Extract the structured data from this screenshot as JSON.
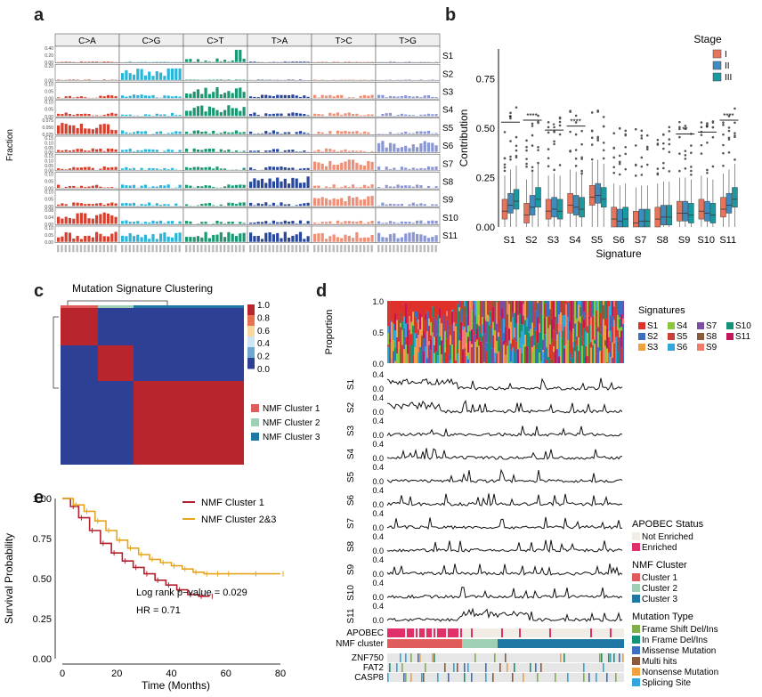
{
  "panel_labels": [
    "a",
    "b",
    "c",
    "d",
    "e"
  ],
  "panel_a": {
    "ylabel": "Fraction",
    "columns": [
      "C>A",
      "C>G",
      "C>T",
      "T>A",
      "T>C",
      "T>G"
    ],
    "rows": [
      "S1",
      "S2",
      "S3",
      "S4",
      "S5",
      "S6",
      "S7",
      "S8",
      "S9",
      "S10",
      "S11"
    ],
    "row_ticks": [
      [
        "0.40",
        "0.20",
        "0.00"
      ],
      [
        "0.20",
        "0.00"
      ],
      [
        "0.10",
        "0.05",
        "0.00"
      ],
      [
        "0.10",
        "0.05",
        "0.00"
      ],
      [
        "0.075",
        "0.050",
        "0.025"
      ],
      [
        "0.15",
        "0.10",
        "0.05",
        "0.00"
      ],
      [
        "0.15",
        "0.10",
        "0.05",
        "0.00"
      ],
      [
        "0.10",
        "0.05",
        "0.00"
      ],
      [
        "0.10",
        "0.05",
        "0.00"
      ],
      [
        "0.08",
        "0.04",
        "0.00"
      ],
      [
        "0.10",
        "0.05",
        "0.00"
      ]
    ],
    "colors": [
      "#d7402e",
      "#2bb6d9",
      "#1a9873",
      "#28479b",
      "#ee8f78",
      "#8a97d3"
    ]
  },
  "panel_b": {
    "ylabel": "Contribution",
    "xlabel": "Signature",
    "legend_title": "Stage",
    "legend_items": [
      "I",
      "II",
      "III"
    ],
    "stage_colors": [
      "#e6735a",
      "#3f8bbd",
      "#1a9aa0"
    ],
    "categories": [
      "S1",
      "S2",
      "S3",
      "S4",
      "S5",
      "S6",
      "S7",
      "S8",
      "S9",
      "S10",
      "S11"
    ],
    "y_ticks": [
      "0.00",
      "0.25",
      "0.50",
      "0.75"
    ],
    "significance": [
      "*",
      "****",
      "*",
      "****",
      "",
      "",
      "",
      "",
      "**",
      "*",
      "****"
    ],
    "chart_data": {
      "type": "box",
      "ylim": [
        0,
        0.9
      ],
      "medians_stage_I_II_III": [
        [
          0.08,
          0.11,
          0.13
        ],
        [
          0.06,
          0.1,
          0.14
        ],
        [
          0.08,
          0.09,
          0.08
        ],
        [
          0.11,
          0.1,
          0.09
        ],
        [
          0.15,
          0.16,
          0.14
        ],
        [
          0.04,
          0.03,
          0.04
        ],
        [
          0.02,
          0.03,
          0.03
        ],
        [
          0.04,
          0.05,
          0.05
        ],
        [
          0.07,
          0.07,
          0.06
        ],
        [
          0.08,
          0.07,
          0.06
        ],
        [
          0.09,
          0.11,
          0.14
        ]
      ]
    }
  },
  "panel_c": {
    "title": "Mutation Signature Clustering",
    "colorbar_ticks": [
      "1.0",
      "0.8",
      "0.6",
      "0.4",
      "0.2",
      "0.0"
    ],
    "legend": [
      {
        "label": "NMF Cluster 1",
        "color": "#e05c5c"
      },
      {
        "label": "NMF Cluster 2",
        "color": "#9fcfb5"
      },
      {
        "label": "NMF Cluster 3",
        "color": "#1f78a4"
      }
    ]
  },
  "panel_d": {
    "proportion_label": "Proportion",
    "proportion_ticks": [
      "1.0",
      "0.5",
      "0.0"
    ],
    "signatures_title": "Signatures",
    "signature_legend": [
      {
        "label": "S1",
        "color": "#e0302a"
      },
      {
        "label": "S4",
        "color": "#8cc63f"
      },
      {
        "label": "S7",
        "color": "#7b4ea1"
      },
      {
        "label": "S10",
        "color": "#14937a"
      },
      {
        "label": "S2",
        "color": "#3c6fc1"
      },
      {
        "label": "S5",
        "color": "#c94038"
      },
      {
        "label": "S8",
        "color": "#8a5a3c"
      },
      {
        "label": "S11",
        "color": "#c2185b"
      },
      {
        "label": "S3",
        "color": "#f2a03d"
      },
      {
        "label": "S6",
        "color": "#32a6dc"
      },
      {
        "label": "S9",
        "color": "#f07c6c"
      }
    ],
    "track_labels": [
      "S1",
      "S2",
      "S3",
      "S4",
      "S5",
      "S6",
      "S7",
      "S8",
      "S9",
      "S10",
      "S11"
    ],
    "track_ticks": [
      "0.4",
      "0.0"
    ],
    "annotation_tracks": [
      "APOBEC",
      "NMF cluster"
    ],
    "genes": [
      "ZNF750",
      "FAT2",
      "CASP8"
    ],
    "apobec_title": "APOBEC Status",
    "apobec_legend": [
      {
        "label": "Not Enriched",
        "color": "#f2ede4"
      },
      {
        "label": "Enriched",
        "color": "#e0306a"
      }
    ],
    "nmf_title": "NMF Cluster",
    "nmf_legend": [
      {
        "label": "Cluster 1",
        "color": "#e05c5c"
      },
      {
        "label": "Cluster 2",
        "color": "#9fcfb5"
      },
      {
        "label": "Cluster 3",
        "color": "#1f78a4"
      }
    ],
    "mutation_title": "Mutation Type",
    "mutation_legend": [
      {
        "label": "Frame Shift Del/Ins",
        "color": "#7fb04a"
      },
      {
        "label": "In Frame Del/Ins",
        "color": "#14937a"
      },
      {
        "label": "Missense Mutation",
        "color": "#3c6fc1"
      },
      {
        "label": "Multi hits",
        "color": "#8a5a3c"
      },
      {
        "label": "Nonsense Mutation",
        "color": "#f2a03d"
      },
      {
        "label": "Splicing Site",
        "color": "#32a6dc"
      }
    ]
  },
  "panel_e": {
    "ylabel": "Survival Probability",
    "xlabel": "Time (Months)",
    "x_ticks": [
      "0",
      "20",
      "40",
      "60",
      "80"
    ],
    "y_ticks": [
      "1.00",
      "0.75",
      "0.50",
      "0.25",
      "0.00"
    ],
    "legend": [
      {
        "label": "NMF Cluster 1",
        "color": "#b3202e"
      },
      {
        "label": "NMF Cluster 2&3",
        "color": "#e6a51c"
      }
    ],
    "annotation_pvalue": "Log rank p−value = 0.029",
    "annotation_hr": "HR = 0.71",
    "chart_data": {
      "type": "line",
      "xlim": [
        0,
        80
      ],
      "ylim": [
        0,
        1
      ],
      "series": [
        {
          "name": "NMF Cluster 1",
          "x": [
            0,
            3,
            6,
            10,
            14,
            18,
            22,
            26,
            30,
            34,
            38,
            42,
            46,
            50,
            54
          ],
          "y": [
            1.0,
            0.95,
            0.88,
            0.8,
            0.72,
            0.66,
            0.61,
            0.57,
            0.53,
            0.49,
            0.46,
            0.43,
            0.4,
            0.39,
            0.39
          ]
        },
        {
          "name": "NMF Cluster 2&3",
          "x": [
            0,
            4,
            8,
            12,
            16,
            20,
            24,
            28,
            32,
            36,
            40,
            44,
            48,
            52,
            56,
            60,
            70,
            80
          ],
          "y": [
            1.0,
            0.96,
            0.92,
            0.86,
            0.8,
            0.74,
            0.69,
            0.65,
            0.62,
            0.6,
            0.58,
            0.56,
            0.54,
            0.53,
            0.53,
            0.53,
            0.53,
            0.53
          ]
        }
      ]
    }
  }
}
